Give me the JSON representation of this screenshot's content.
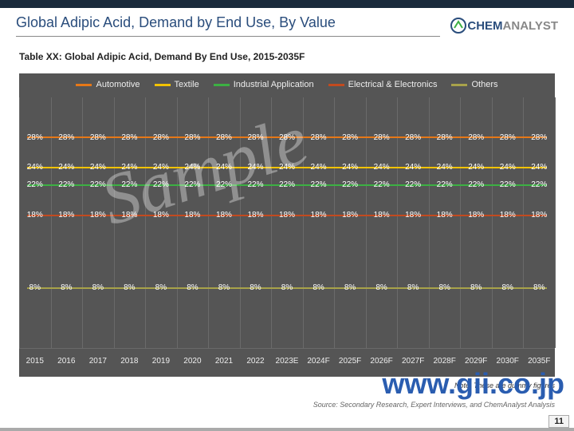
{
  "header": {
    "title": "Global Adipic Acid, Demand by End Use, By Value",
    "logo_chem": "CHEM",
    "logo_analyst": "ANALYST"
  },
  "subtitle": "Table XX: Global  Adipic Acid, Demand By End Use, 2015-2035F",
  "chart": {
    "type": "line",
    "background_color": "#555555",
    "grid_color": "#6a6a6a",
    "text_color": "#eeeeee",
    "value_color": "#ffffff",
    "categories": [
      "2015",
      "2016",
      "2017",
      "2018",
      "2019",
      "2020",
      "2021",
      "2022",
      "2023E",
      "2024F",
      "2025F",
      "2026F",
      "2027F",
      "2028F",
      "2029F",
      "2030F",
      "2035F"
    ],
    "series": [
      {
        "name": "Automotive",
        "color": "#e67817",
        "value": "28%",
        "y_pct": 16
      },
      {
        "name": "Textile",
        "color": "#f2c200",
        "value": "24%",
        "y_pct": 28
      },
      {
        "name": "Industrial Application",
        "color": "#3cb043",
        "value": "22%",
        "y_pct": 35
      },
      {
        "name": "Electrical & Electronics",
        "color": "#c24a1f",
        "value": "18%",
        "y_pct": 47
      },
      {
        "name": "Others",
        "color": "#a8a24a",
        "value": "8%",
        "y_pct": 76
      }
    ],
    "label_fontsize": 10,
    "legend_fontsize": 11,
    "line_width": 2
  },
  "watermarks": {
    "sample": "Sample",
    "url": "www.gii.co.jp"
  },
  "footer": {
    "note": "Note: These are dummy figures",
    "source": "Source: Secondary Research, Expert Interviews, and ChemAnalyst  Analysis",
    "page": "11"
  }
}
